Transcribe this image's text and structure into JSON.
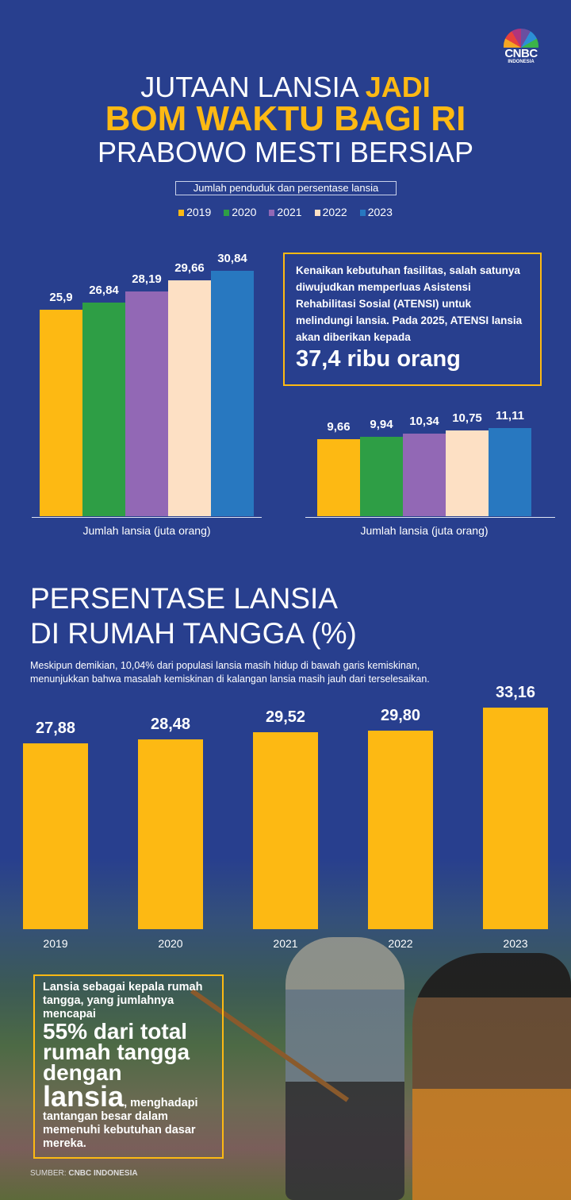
{
  "brand": {
    "logo_text": "CNBC",
    "logo_sub": "INDONESIA"
  },
  "header": {
    "line1_plain": "JUTAAN LANSIA ",
    "line1_accent": "JADI",
    "line2": "BOM WAKTU BAGI RI",
    "line3": "PRABOWO MESTI BERSIAP",
    "subtitle": "Jumlah penduduk dan persentase lansia"
  },
  "colors": {
    "background": "#283f8e",
    "accent": "#fdb913"
  },
  "legend": [
    {
      "label": "2019",
      "color": "#fdb913"
    },
    {
      "label": "2020",
      "color": "#2e9e45"
    },
    {
      "label": "2021",
      "color": "#9268b5"
    },
    {
      "label": "2022",
      "color": "#fde0c4"
    },
    {
      "label": "2023",
      "color": "#2878c0"
    }
  ],
  "chart_data": [
    {
      "type": "bar",
      "title": "Jumlah lansia",
      "xlabel": "Jumlah lansia (juta orang)",
      "categories": [
        "2019",
        "2020",
        "2021",
        "2022",
        "2023"
      ],
      "values": [
        25.9,
        26.84,
        28.19,
        29.66,
        30.84
      ],
      "labels": [
        "25,9",
        "26,84",
        "28,19",
        "29,66",
        "30,84"
      ],
      "ylim": [
        0,
        35
      ]
    },
    {
      "type": "bar",
      "title": "Persentase lansia",
      "xlabel": "Jumlah lansia (juta orang)",
      "categories": [
        "2019",
        "2020",
        "2021",
        "2022",
        "2023"
      ],
      "values": [
        9.66,
        9.94,
        10.34,
        10.75,
        11.11
      ],
      "labels": [
        "9,66",
        "9,94",
        "10,34",
        "10,75",
        "11,11"
      ],
      "ylim": [
        0,
        35
      ]
    },
    {
      "type": "bar",
      "title": "PERSENTASE LANSIA DI RUMAH TANGGA (%)",
      "categories": [
        "2019",
        "2020",
        "2021",
        "2022",
        "2023"
      ],
      "values": [
        27.88,
        28.48,
        29.52,
        29.8,
        33.16
      ],
      "labels": [
        "27,88",
        "28,48",
        "29,52",
        "29,80",
        "33,16"
      ],
      "ylim": [
        0,
        35
      ]
    }
  ],
  "infobox": {
    "text": "Kenaikan kebutuhan fasilitas, salah satunya diwujudkan memperluas Asistensi Rehabilitasi Sosial (ATENSI) untuk melindungi lansia. Pada 2025, ATENSI lansia akan diberikan kepada",
    "highlight": "37,4 ribu orang"
  },
  "section2": {
    "title_line1": "PERSENTASE LANSIA",
    "title_line2": "DI RUMAH TANGGA (%)",
    "desc_line1": "Meskipun demikian, 10,04% dari populasi lansia masih hidup di bawah garis kemiskinan,",
    "desc_line2": "menunjukkan bahwa masalah kemiskinan di kalangan lansia masih jauh dari terselesaikan."
  },
  "photo_box": {
    "intro": "Lansia sebagai kepala rumah tangga, yang jumlahnya mencapai",
    "big1": "55% dari total rumah tangga dengan",
    "big2": "lansia",
    "outro": ", menghadapi tantangan besar dalam memenuhi kebutuhan dasar mereka."
  },
  "source": {
    "label": "SUMBER: ",
    "name": "CNBC INDONESIA"
  }
}
